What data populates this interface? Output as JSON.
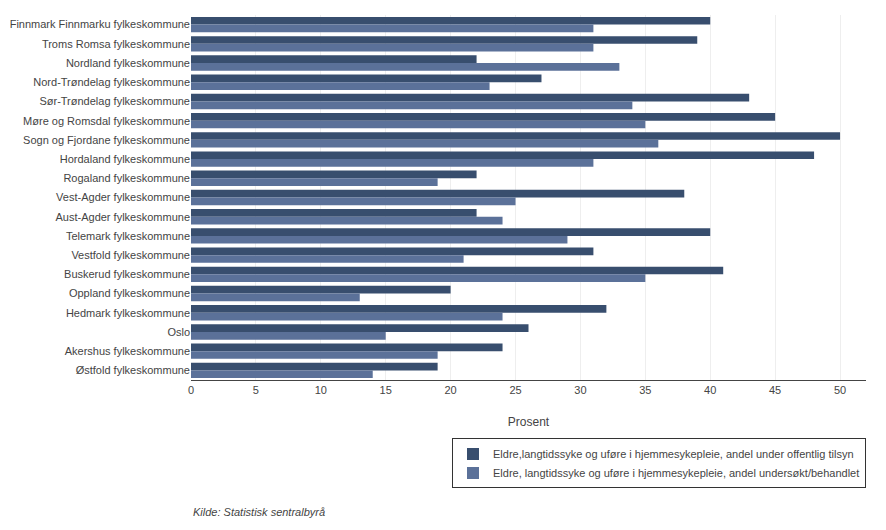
{
  "chart_data": {
    "type": "bar",
    "orientation": "horizontal",
    "categories": [
      "Finnmark Finnmarku fylkeskommune",
      "Troms Romsa fylkeskommune",
      "Nordland fylkeskommune",
      "Nord-Trøndelag fylkeskommune",
      "Sør-Trøndelag fylkeskommune",
      "Møre og Romsdal fylkeskommune",
      "Sogn og Fjordane fylkeskommune",
      "Hordaland fylkeskommune",
      "Rogaland fylkeskommune",
      "Vest-Agder fylkeskommune",
      "Aust-Agder fylkeskommune",
      "Telemark fylkeskommune",
      "Vestfold fylkeskommune",
      "Buskerud fylkeskommune",
      "Oppland fylkeskommune",
      "Hedmark fylkeskommune",
      "Oslo",
      "Akershus fylkeskommune",
      "Østfold fylkeskommune"
    ],
    "series": [
      {
        "name": "Eldre,langtidssyke og uføre i hjemmesykepleie, andel under offentlig tilsyn",
        "color": "#384e6e",
        "values": [
          40,
          39,
          22,
          27,
          43,
          45,
          50,
          48,
          22,
          38,
          22,
          40,
          31,
          41,
          20,
          32,
          26,
          24,
          19
        ]
      },
      {
        "name": "Eldre, langtidssyke og uføre i hjemmesykepleie, andel undersøkt/behandlet",
        "color": "#5b7199",
        "values": [
          31,
          31,
          33,
          23,
          34,
          35,
          36,
          31,
          19,
          25,
          24,
          29,
          21,
          35,
          13,
          24,
          15,
          19,
          14
        ]
      }
    ],
    "xlabel": "Prosent",
    "xlim": [
      0,
      52
    ],
    "xticks": [
      0,
      5,
      10,
      15,
      20,
      25,
      30,
      35,
      40,
      45,
      50
    ],
    "grid": true,
    "legend": "lower right",
    "source": "Kilde: Statistisk sentralbyrå"
  }
}
